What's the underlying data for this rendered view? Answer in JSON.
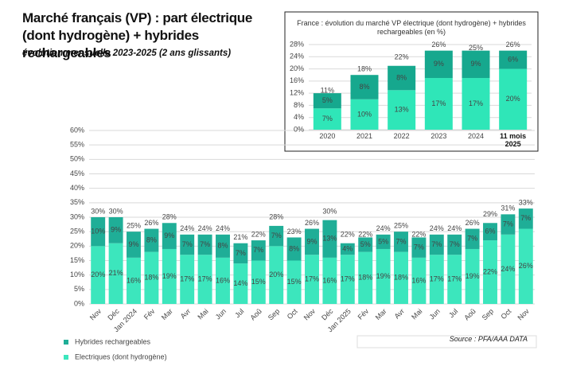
{
  "chart_data": [
    {
      "type": "stacked_bar",
      "title": "Marché français (VP) : part électrique (dont hydrogène) + hybrides rechargeables",
      "subtitle": "évolution mensuelle 2023-2025 (2 ans glissants)",
      "source": "Source : PFA/AAA DATA",
      "categories": [
        "Nov",
        "Déc",
        "Jan 2024",
        "Fév",
        "Mar",
        "Avr",
        "Mai",
        "Jun",
        "Jul",
        "Aoû",
        "Sep",
        "Oct",
        "Nov",
        "Déc",
        "Jan 2025",
        "Fév",
        "Mar",
        "Avr",
        "Mai",
        "Jun",
        "Jul",
        "Aoû",
        "Sep",
        "Oct",
        "Nov"
      ],
      "series": [
        {
          "name": "Electriques (dont hydrogène)",
          "color": "#3ce6bd",
          "values": [
            20,
            21,
            16,
            18,
            19,
            17,
            17,
            16,
            14,
            15,
            20,
            15,
            17,
            16,
            17,
            18,
            19,
            18,
            16,
            17,
            17,
            19,
            22,
            24,
            26
          ],
          "value_labels": [
            "20%",
            "21%",
            "16%",
            "18%",
            "19%",
            "17%",
            "17%",
            "16%",
            "14%",
            "15%",
            "20%",
            "15%",
            "17%",
            "16%",
            "17%",
            "18%",
            "19%",
            "18%",
            "16%",
            "17%",
            "17%",
            "19%",
            "22%",
            "24%",
            "26%"
          ]
        },
        {
          "name": "Hybrides rechargeables",
          "color": "#1fae97",
          "values": [
            10,
            9,
            9,
            8,
            9,
            7,
            7,
            8,
            7,
            7,
            7,
            8,
            9,
            13,
            4,
            5,
            5,
            7,
            7,
            7,
            7,
            7,
            6,
            7,
            7
          ],
          "value_labels": [
            "10%",
            "9%",
            "9%",
            "8%",
            "9%",
            "7%",
            "7%",
            "8%",
            "7%",
            "7%",
            "7%",
            "8%",
            "9%",
            "13%",
            "4%",
            "5%",
            "5%",
            "7%",
            "7%",
            "7%",
            "7%",
            "7%",
            "6%",
            "7%",
            "7%"
          ]
        }
      ],
      "totals": [
        30,
        30,
        25,
        26,
        28,
        24,
        24,
        24,
        21,
        22,
        28,
        23,
        26,
        30,
        22,
        22,
        24,
        25,
        22,
        24,
        24,
        26,
        29,
        31,
        33
      ],
      "total_labels": [
        "30%",
        "30%",
        "25%",
        "26%",
        "28%",
        "24%",
        "24%",
        "24%",
        "21%",
        "22%",
        "28%",
        "23%",
        "26%",
        "30%",
        "22%",
        "22%",
        "24%",
        "25%",
        "22%",
        "24%",
        "24%",
        "26%",
        "29%",
        "31%",
        "33%"
      ],
      "ylim": [
        0,
        60
      ],
      "yticks": [
        {
          "value": 0,
          "label": "0%"
        },
        {
          "value": 5,
          "label": "5%"
        },
        {
          "value": 10,
          "label": "10%"
        },
        {
          "value": 15,
          "label": "15%"
        },
        {
          "value": 20,
          "label": "20%"
        },
        {
          "value": 25,
          "label": "25%"
        },
        {
          "value": 30,
          "label": "30%"
        },
        {
          "value": 35,
          "label": "35%"
        },
        {
          "value": 40,
          "label": "40%"
        },
        {
          "value": 45,
          "label": "45%"
        },
        {
          "value": 50,
          "label": "50%"
        },
        {
          "value": 55,
          "label": "55%"
        },
        {
          "value": 60,
          "label": "60%"
        }
      ],
      "grid": true
    },
    {
      "type": "stacked_bar",
      "title": "France : évolution du marché VP électrique (dont hydrogène) + hybrides rechargeables (en %)",
      "categories": [
        "2020",
        "2021",
        "2022",
        "2023",
        "2024",
        "11 mois 2025"
      ],
      "series": [
        {
          "name": "Electriques (dont hydrogène)",
          "color": "#2fe6b8",
          "values": [
            7,
            10,
            13,
            17,
            17,
            20
          ],
          "value_labels": [
            "7%",
            "10%",
            "13%",
            "17%",
            "17%",
            "20%"
          ]
        },
        {
          "name": "Hybrides rechargeables",
          "color": "#16a88e",
          "values": [
            5,
            8,
            8,
            9,
            9,
            6
          ],
          "value_labels": [
            "5%",
            "8%",
            "8%",
            "9%",
            "9%",
            "6%"
          ]
        }
      ],
      "totals": [
        11,
        18,
        22,
        26,
        25,
        26
      ],
      "total_labels": [
        "11%",
        "18%",
        "22%",
        "26%",
        "25%",
        "26%"
      ],
      "ylim": [
        0,
        28
      ],
      "yticks": [
        {
          "value": 0,
          "label": "0%"
        },
        {
          "value": 4,
          "label": "4%"
        },
        {
          "value": 8,
          "label": "8%"
        },
        {
          "value": 12,
          "label": "12%"
        },
        {
          "value": 16,
          "label": "16%"
        },
        {
          "value": 20,
          "label": "20%"
        },
        {
          "value": 24,
          "label": "24%"
        },
        {
          "value": 28,
          "label": "28%"
        }
      ],
      "grid": true
    }
  ]
}
